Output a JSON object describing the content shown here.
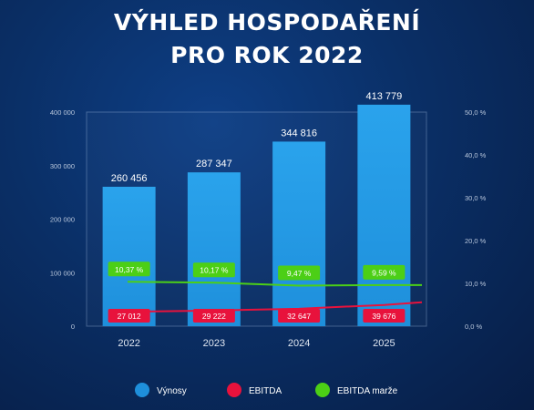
{
  "title_line1": "VÝHLED HOSPODAŘENÍ",
  "title_line2": "PRO ROK 2022",
  "colors": {
    "background": "#0a2f66",
    "revenue_bar": "#1e8fdb",
    "ebitda": "#e8123c",
    "ebitda_margin": "#4ccf16",
    "axis_text": "#b9c7dc"
  },
  "legend": [
    {
      "label": "Výnosy",
      "color": "#1e8fdb",
      "icon": "circle-icon"
    },
    {
      "label": "EBITDA",
      "color": "#e8123c",
      "icon": "circle-icon"
    },
    {
      "label": "EBITDA marže",
      "color": "#4ccf16",
      "icon": "circle-icon"
    }
  ],
  "chart_data": {
    "type": "bar",
    "categories": [
      "2022",
      "2023",
      "2024",
      "2025"
    ],
    "series": [
      {
        "name": "Výnosy",
        "type": "bar",
        "values": [
          260456,
          287347,
          344816,
          413779
        ],
        "labels": [
          "260 456",
          "287 347",
          "344 816",
          "413 779"
        ]
      },
      {
        "name": "EBITDA",
        "type": "line",
        "values": [
          27012,
          29222,
          32647,
          39676
        ],
        "labels": [
          "27 012",
          "29 222",
          "32 647",
          "39 676"
        ]
      },
      {
        "name": "EBITDA marže",
        "type": "line",
        "axis": "right",
        "values": [
          10.37,
          10.17,
          9.47,
          9.59
        ],
        "labels": [
          "10,37 %",
          "10,17 %",
          "9,47 %",
          "9,59 %"
        ]
      }
    ],
    "y_left": {
      "ticks": [
        "0",
        "100 000",
        "200 000",
        "300 000",
        "400 000"
      ],
      "range": [
        0,
        400000
      ]
    },
    "y_right": {
      "ticks": [
        "0,0 %",
        "10,0 %",
        "20,0 %",
        "30,0 %",
        "40,0 %",
        "50,0 %"
      ],
      "range": [
        0,
        50
      ]
    },
    "grid": false,
    "legend_position": "bottom"
  }
}
